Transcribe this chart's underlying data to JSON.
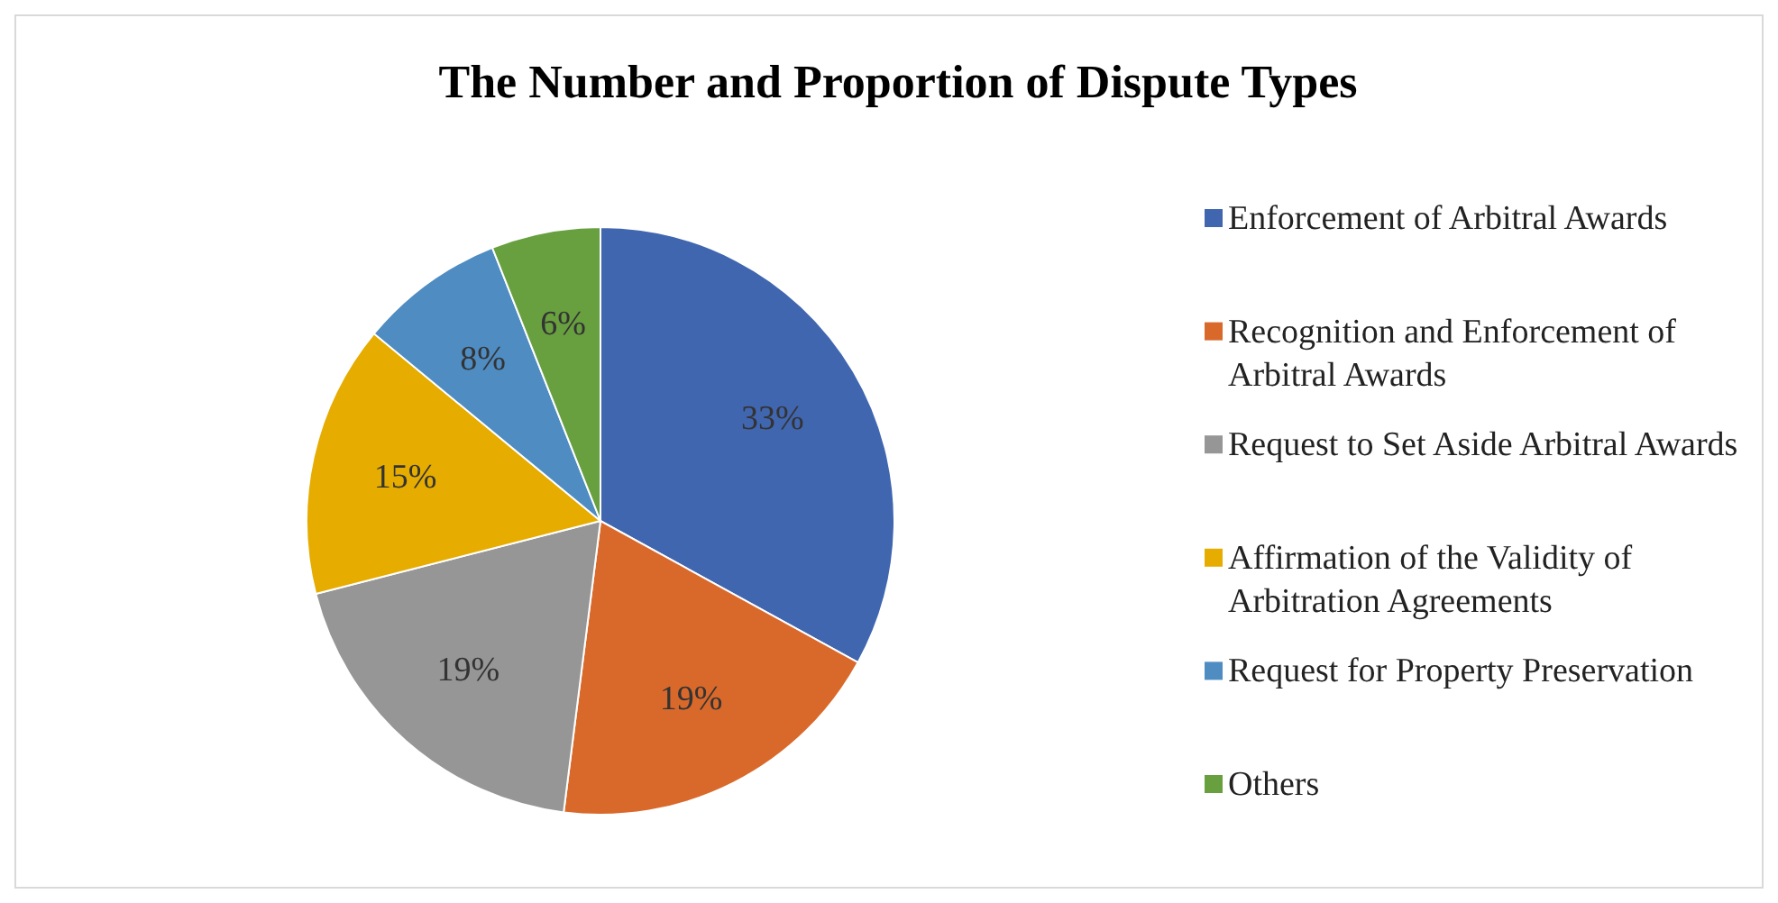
{
  "chart_data": {
    "type": "pie",
    "title": "The Number and Proportion of Dispute Types",
    "categories": [
      "Enforcement of Arbitral Awards",
      "Recognition and Enforcement of Arbitral Awards",
      "Request to Set Aside Arbitral Awards",
      "Affirmation of the Validity of Arbitration Agreements",
      "Request for Property Preservation",
      "Others"
    ],
    "values": [
      33,
      19,
      19,
      15,
      8,
      6
    ],
    "colors": [
      "#4066b0",
      "#d9692b",
      "#969696",
      "#e6ac00",
      "#4e8cc2",
      "#68a040"
    ],
    "value_labels": [
      "33%",
      "19%",
      "19%",
      "15%",
      "8%",
      "6%"
    ],
    "legend": "right"
  }
}
